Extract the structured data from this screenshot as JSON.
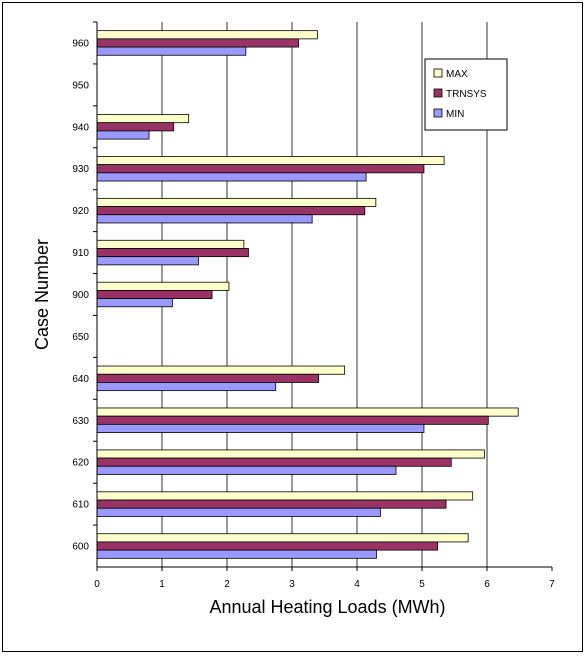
{
  "chart_data": {
    "type": "bar",
    "orientation": "horizontal",
    "title": "",
    "xlabel": "Annual Heating Loads (MWh)",
    "ylabel": "Case Number",
    "xlim": [
      0,
      7
    ],
    "xticks": [
      0,
      1,
      2,
      3,
      4,
      5,
      6,
      7
    ],
    "grid": "vertical",
    "legend_position": "top-right",
    "categories": [
      "600",
      "610",
      "620",
      "630",
      "640",
      "650",
      "900",
      "910",
      "920",
      "930",
      "940",
      "950",
      "960"
    ],
    "series": [
      {
        "name": "MAX",
        "color": "#FFFFCC",
        "values": [
          5.71,
          5.78,
          5.96,
          6.48,
          3.81,
          null,
          2.03,
          2.26,
          4.29,
          5.34,
          1.41,
          null,
          3.39
        ]
      },
      {
        "name": "TRNSYS",
        "color": "#993366",
        "values": [
          5.24,
          5.37,
          5.45,
          6.02,
          3.41,
          null,
          1.77,
          2.33,
          4.12,
          5.03,
          1.18,
          null,
          3.1
        ]
      },
      {
        "name": "MIN",
        "color": "#9999FF",
        "values": [
          4.3,
          4.36,
          4.6,
          5.03,
          2.75,
          null,
          1.16,
          1.56,
          3.31,
          4.14,
          0.8,
          null,
          2.29
        ]
      }
    ]
  }
}
